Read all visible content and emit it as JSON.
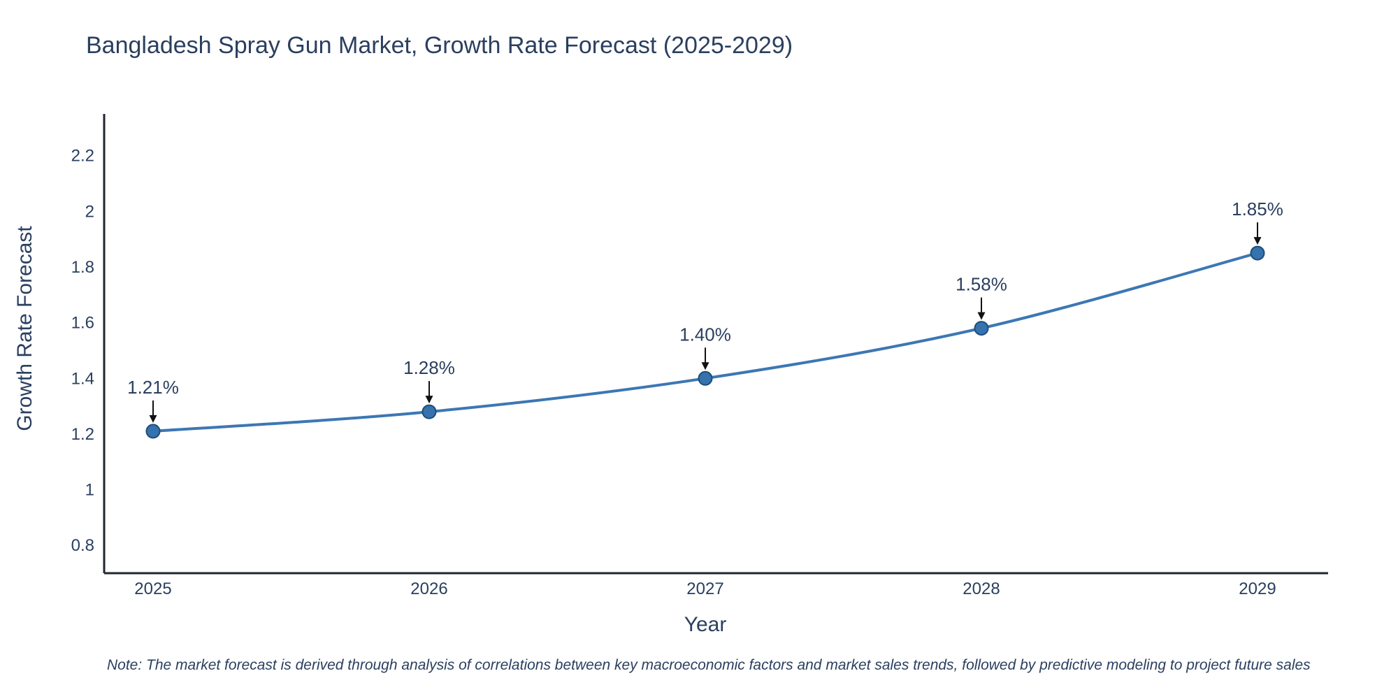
{
  "note": "Note: The market forecast is derived through analysis of correlations between key macroeconomic factors and market sales trends, followed by predictive modeling to project future sales",
  "colors": {
    "line": "#3c77b3",
    "marker_fill": "#3572ae",
    "marker_edge": "#1d4e79",
    "text": "#2a3f5f",
    "axis": "#21262e",
    "arrow": "#111111"
  },
  "chart_data": {
    "type": "line",
    "title": "Bangladesh Spray Gun Market, Growth Rate Forecast (2025-2029)",
    "xlabel": "Year",
    "ylabel": "Growth Rate Forecast",
    "categories": [
      "2025",
      "2026",
      "2027",
      "2028",
      "2029"
    ],
    "values": [
      1.21,
      1.28,
      1.4,
      1.58,
      1.85
    ],
    "point_labels": [
      "1.21%",
      "1.28%",
      "1.40%",
      "1.58%",
      "1.85%"
    ],
    "yticks": [
      0.8,
      1.0,
      1.2,
      1.4,
      1.6,
      1.8,
      2.0,
      2.2
    ],
    "ytick_labels": [
      "0.8",
      "1",
      "1.2",
      "1.4",
      "1.6",
      "1.8",
      "2",
      "2.2"
    ],
    "ylim": [
      0.7,
      2.35
    ],
    "grid": false,
    "legend": "none",
    "marker": "circle",
    "line_style": "smooth"
  }
}
